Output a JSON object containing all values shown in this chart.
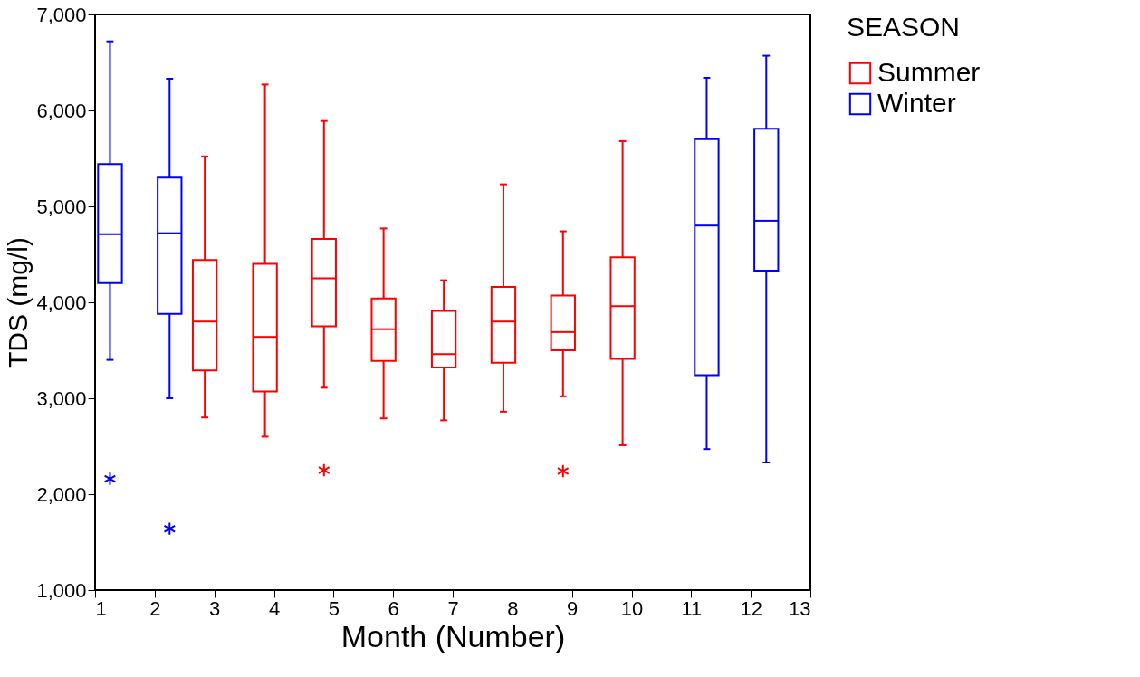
{
  "chart_data": {
    "type": "box",
    "xlabel": "Month (Number)",
    "ylabel": "TDS (mg/l)",
    "legend_title": "SEASON",
    "legend": "right",
    "grid": false,
    "xlim": [
      1,
      13
    ],
    "xticks": [
      1,
      2,
      3,
      4,
      5,
      6,
      7,
      8,
      9,
      10,
      11,
      12,
      13
    ],
    "ylim": [
      1000,
      7000
    ],
    "yticks": [
      {
        "value": 1000,
        "label": "1,000"
      },
      {
        "value": 2000,
        "label": "2,000"
      },
      {
        "value": 3000,
        "label": "3,000"
      },
      {
        "value": 4000,
        "label": "4,000"
      },
      {
        "value": 5000,
        "label": "5,000"
      },
      {
        "value": 6000,
        "label": "6,000"
      },
      {
        "value": 7000,
        "label": "7,000"
      }
    ],
    "series": [
      {
        "name": "Summer",
        "color": "#ff0000",
        "x": [
          2.84,
          3.85,
          4.84,
          5.84,
          6.85,
          7.85,
          8.85,
          9.85
        ],
        "boxes": [
          {
            "low": 2800,
            "q1": 3290,
            "median": 3800,
            "q3": 4440,
            "high": 5520
          },
          {
            "low": 2600,
            "q1": 3070,
            "median": 3640,
            "q3": 4400,
            "high": 6270
          },
          {
            "low": 3110,
            "q1": 3750,
            "median": 4250,
            "q3": 4660,
            "high": 5890,
            "outliers": [
              2250
            ]
          },
          {
            "low": 2790,
            "q1": 3390,
            "median": 3720,
            "q3": 4040,
            "high": 4770
          },
          {
            "low": 2770,
            "q1": 3320,
            "median": 3460,
            "q3": 3910,
            "high": 4230
          },
          {
            "low": 2860,
            "q1": 3370,
            "median": 3800,
            "q3": 4160,
            "high": 5230
          },
          {
            "low": 3020,
            "q1": 3500,
            "median": 3690,
            "q3": 4070,
            "high": 4740,
            "outliers": [
              2240
            ]
          },
          {
            "low": 2510,
            "q1": 3410,
            "median": 3960,
            "q3": 4470,
            "high": 5680
          }
        ]
      },
      {
        "name": "Winter",
        "color": "#0000ff",
        "x": [
          1.25,
          2.25,
          11.26,
          12.26
        ],
        "boxes": [
          {
            "low": 3400,
            "q1": 4200,
            "median": 4710,
            "q3": 5440,
            "high": 6720,
            "outliers": [
              2160
            ]
          },
          {
            "low": 3000,
            "q1": 3880,
            "median": 4720,
            "q3": 5300,
            "high": 6330,
            "outliers": [
              1640
            ]
          },
          {
            "low": 2470,
            "q1": 3240,
            "median": 4800,
            "q3": 5700,
            "high": 6340
          },
          {
            "low": 2330,
            "q1": 4330,
            "median": 4850,
            "q3": 5810,
            "high": 6570
          }
        ]
      }
    ]
  }
}
